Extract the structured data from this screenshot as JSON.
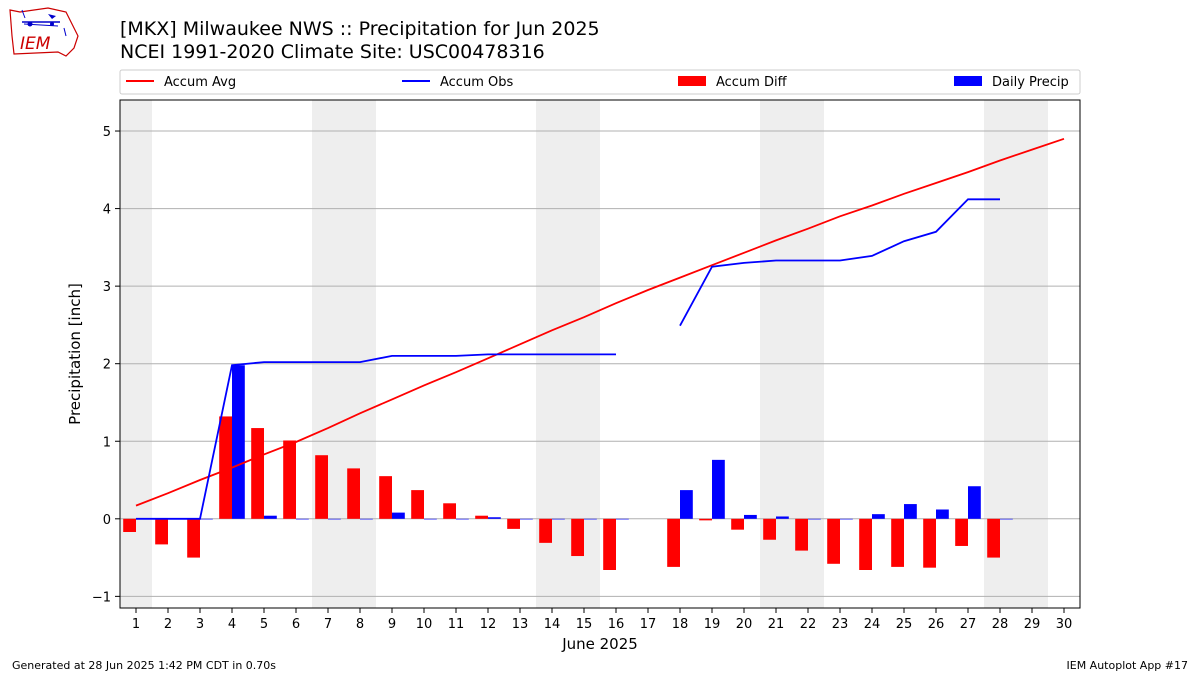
{
  "page": {
    "title_line1": "[MKX] Milwaukee NWS :: Precipitation for Jun 2025",
    "title_line2": "NCEI 1991-2020 Climate Site: USC00478316",
    "logo_text": "IEM",
    "footer_left": "Generated at 28 Jun 2025 1:42 PM CDT in 0.70s",
    "footer_right": "IEM Autoplot App #17"
  },
  "colors": {
    "avg": "#ff0000",
    "obs": "#0000ff",
    "diff": "#ff0000",
    "daily": "#0000ff",
    "weekend": "#eeeeee",
    "grid": "#b0b0b0"
  },
  "chart_data": {
    "type": "bar",
    "xlabel": "June 2025",
    "ylabel": "Precipitation [inch]",
    "xlim": [
      0.5,
      30.5
    ],
    "ylim": [
      -1.15,
      5.4
    ],
    "yticks": [
      -1,
      0,
      1,
      2,
      3,
      4,
      5
    ],
    "grid": "horizontal",
    "legend_position": "top",
    "x": [
      1,
      2,
      3,
      4,
      5,
      6,
      7,
      8,
      9,
      10,
      11,
      12,
      13,
      14,
      15,
      16,
      17,
      18,
      19,
      20,
      21,
      22,
      23,
      24,
      25,
      26,
      27,
      28,
      29,
      30
    ],
    "weekends": [
      [
        1,
        1
      ],
      [
        7,
        8
      ],
      [
        14,
        15
      ],
      [
        21,
        22
      ],
      [
        28,
        29
      ]
    ],
    "series": [
      {
        "name": "Accum Avg",
        "kind": "line",
        "values": [
          0.17,
          0.33,
          0.5,
          0.66,
          0.83,
          0.99,
          1.17,
          1.36,
          1.54,
          1.72,
          1.89,
          2.07,
          2.25,
          2.43,
          2.6,
          2.78,
          2.95,
          3.11,
          3.27,
          3.43,
          3.59,
          3.74,
          3.9,
          4.04,
          4.19,
          4.33,
          4.47,
          4.62,
          4.76,
          4.9
        ]
      },
      {
        "name": "Accum Obs",
        "kind": "line",
        "values": [
          0,
          0,
          0,
          1.98,
          2.02,
          2.02,
          2.02,
          2.02,
          2.1,
          2.1,
          2.1,
          2.12,
          2.12,
          2.12,
          2.12,
          2.12,
          null,
          2.49,
          3.25,
          3.3,
          3.33,
          3.33,
          3.33,
          3.39,
          3.58,
          3.7,
          4.12,
          4.12,
          null,
          null
        ]
      },
      {
        "name": "Accum Diff",
        "kind": "bar",
        "values": [
          -0.17,
          -0.33,
          -0.5,
          1.32,
          1.17,
          1.01,
          0.82,
          0.65,
          0.55,
          0.37,
          0.2,
          0.04,
          -0.13,
          -0.31,
          -0.48,
          -0.66,
          null,
          -0.62,
          -0.02,
          -0.14,
          -0.27,
          -0.41,
          -0.58,
          -0.66,
          -0.62,
          -0.63,
          -0.35,
          -0.5,
          null,
          null
        ]
      },
      {
        "name": "Daily Precip",
        "kind": "bar",
        "values": [
          0,
          0,
          0,
          1.98,
          0.04,
          0,
          0,
          0,
          0.08,
          0,
          0,
          0.02,
          0,
          0,
          0,
          0,
          null,
          0.37,
          0.76,
          0.05,
          0.03,
          0,
          0,
          0.06,
          0.19,
          0.12,
          0.42,
          0,
          null,
          null
        ]
      }
    ]
  }
}
